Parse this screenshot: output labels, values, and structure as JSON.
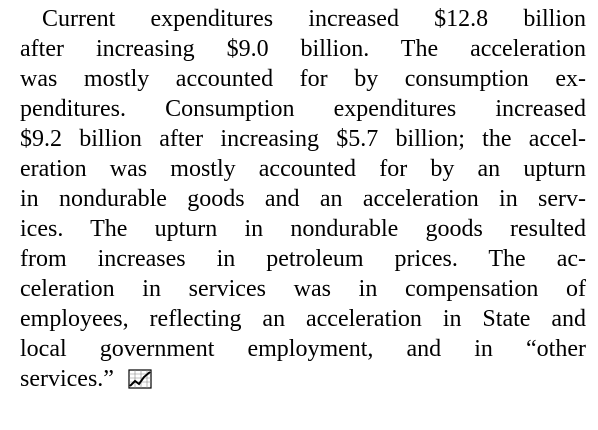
{
  "paragraph": {
    "lines": [
      "Current expenditures increased $12.8 billion",
      "after increasing $9.0 billion.  The acceleration",
      "was mostly accounted for by consumption ex-",
      "penditures. Consumption expenditures increased",
      "$9.2 billion after increasing $5.7 billion; the accel-",
      "eration was mostly accounted for by an upturn",
      "in nondurable goods and an acceleration in serv-",
      "ices.  The upturn in nondurable goods resulted",
      "from increases in petroleum prices.  The ac-",
      "celeration in services was in compensation of",
      "employees, reflecting an acceleration in State and",
      "local government employment, and in “other",
      "services.”"
    ]
  }
}
